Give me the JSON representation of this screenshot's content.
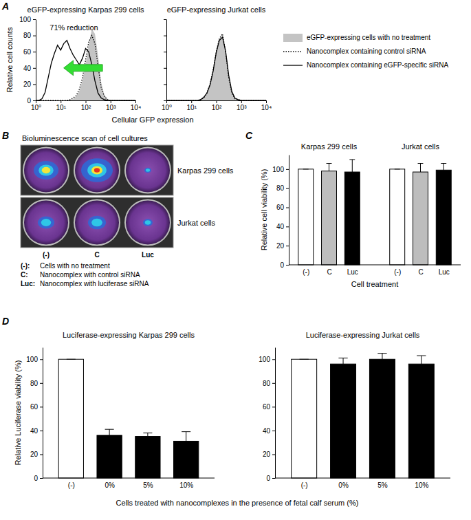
{
  "chart_data": [
    {
      "panel": "A",
      "type": "line",
      "title": "eGFP-expressing Karpas 299 cells",
      "xlabel": "Cellular GFP expression",
      "ylabel": "Relative cell counts",
      "log": "x",
      "xlim": [
        1,
        10000
      ],
      "xticks": [
        {
          "value": 1,
          "label": "10⁰"
        },
        {
          "value": 10,
          "label": "10¹"
        },
        {
          "value": 100,
          "label": "10²"
        },
        {
          "value": 1000,
          "label": "10³"
        },
        {
          "value": 10000,
          "label": "10⁴"
        }
      ],
      "ylim": [
        0,
        100
      ],
      "yticks": [
        0,
        20,
        40,
        60,
        80,
        100
      ],
      "annotations": [
        "71% reduction"
      ],
      "legend": "right",
      "x": [
        1,
        1.33,
        1.78,
        2.37,
        3.16,
        4.22,
        5.62,
        7.5,
        10,
        13.3,
        17.8,
        23.7,
        31.6,
        42.2,
        56.2,
        75,
        100,
        133,
        178,
        237,
        316,
        422,
        562,
        750,
        1000,
        1334,
        1778,
        2371,
        3162,
        4217,
        5623,
        7499,
        10000
      ],
      "series": [
        {
          "name": "eGFP-expressing cells with no treatment",
          "type": "area",
          "color": "#c4c4c4",
          "line_style": "solid",
          "values": [
            0,
            0,
            0,
            0,
            0,
            0,
            0,
            0,
            0,
            0,
            0,
            1,
            2,
            5,
            12,
            25,
            45,
            68,
            88,
            82,
            55,
            22,
            7,
            2,
            0,
            0,
            0,
            0,
            0,
            0,
            0,
            0,
            0
          ]
        },
        {
          "name": "Nanocomplex containing control siRNA",
          "type": "line",
          "color": "#000000",
          "line_style": "dotted",
          "values": [
            0,
            0,
            0,
            0,
            0,
            0,
            0,
            0,
            0,
            0,
            0,
            1,
            3,
            6,
            14,
            28,
            50,
            72,
            80,
            70,
            42,
            16,
            5,
            1,
            0,
            0,
            0,
            0,
            0,
            0,
            0,
            0,
            0
          ]
        },
        {
          "name": "Nanocomplex containing eGFP-specific siRNA",
          "type": "line",
          "color": "#000000",
          "line_style": "solid",
          "values": [
            0,
            0,
            2,
            10,
            28,
            46,
            58,
            68,
            62,
            70,
            74,
            64,
            56,
            50,
            44,
            52,
            64,
            60,
            44,
            24,
            9,
            3,
            1,
            0,
            0,
            0,
            0,
            0,
            0,
            0,
            0,
            0,
            0
          ]
        }
      ]
    },
    {
      "type": "line",
      "title": "eGFP-expressing Jurkat cells",
      "log": "x",
      "xlim": [
        1,
        10000
      ],
      "tick_labels": "x",
      "xticks": [
        {
          "value": 1,
          "label": "10⁰"
        },
        {
          "value": 10,
          "label": "10¹"
        },
        {
          "value": 100,
          "label": "10²"
        },
        {
          "value": 1000,
          "label": "10³"
        },
        {
          "value": 10000,
          "label": "10⁴"
        }
      ],
      "ylim": [
        0,
        100
      ],
      "yticks": [
        0,
        20,
        40,
        60,
        80,
        100
      ],
      "x": [
        1,
        1.33,
        1.78,
        2.37,
        3.16,
        4.22,
        5.62,
        7.5,
        10,
        13.3,
        17.8,
        23.7,
        31.6,
        42.2,
        56.2,
        75,
        100,
        133,
        178,
        237,
        316,
        422,
        562,
        750,
        1000,
        1334,
        1778,
        2371,
        3162,
        4217,
        5623,
        7499,
        10000
      ],
      "series": [
        {
          "type": "area",
          "color": "#c4c4c4",
          "line_style": "solid",
          "values": [
            0,
            0,
            0,
            0,
            0,
            0,
            0,
            0,
            0,
            0,
            0,
            1,
            3,
            8,
            18,
            35,
            58,
            75,
            80,
            62,
            30,
            10,
            3,
            1,
            0,
            0,
            0,
            0,
            0,
            0,
            0,
            0,
            0
          ]
        },
        {
          "type": "line",
          "color": "#000000",
          "line_style": "dotted",
          "values": [
            0,
            0,
            0,
            0,
            0,
            0,
            0,
            0,
            0,
            0,
            0,
            1,
            3,
            9,
            20,
            38,
            60,
            76,
            82,
            60,
            28,
            9,
            2,
            1,
            0,
            0,
            0,
            0,
            0,
            0,
            0,
            0,
            0
          ]
        },
        {
          "type": "line",
          "color": "#000000",
          "line_style": "solid",
          "values": [
            0,
            0,
            0,
            0,
            0,
            0,
            0,
            0,
            0,
            0,
            0,
            1,
            4,
            9,
            19,
            36,
            59,
            74,
            78,
            61,
            31,
            11,
            3,
            1,
            0,
            0,
            0,
            0,
            0,
            0,
            0,
            0,
            0
          ]
        }
      ]
    },
    {
      "panel": "C",
      "type": "bar",
      "ylabel": "Relative cell viability (%)",
      "xlabel": "Cell treatment",
      "groups": [
        "Karpas 299 cells",
        "Jurkat cells"
      ],
      "categories": [
        "(-)",
        "C",
        "Luc",
        "(-)",
        "C",
        "Luc"
      ],
      "values": [
        100,
        98,
        97,
        100,
        97,
        99
      ],
      "errors": [
        0,
        8,
        13,
        0,
        9,
        7
      ],
      "colors": [
        "#ffffff",
        "#bdbdbd",
        "#000000",
        "#ffffff",
        "#bdbdbd",
        "#000000"
      ],
      "ylim": [
        0,
        115
      ],
      "yticks": [
        0,
        20,
        40,
        60,
        80,
        100
      ]
    },
    {
      "panel": "D",
      "type": "bar",
      "title": "Luciferase-expressing Karpas 299 cells",
      "ylabel": "Relative Luciferase viability (%)",
      "xlabel": "Cells treated with nanocomplexes in the presence of fetal calf serum (%)",
      "categories": [
        "(-)",
        "0%",
        "5%",
        "10%"
      ],
      "values": [
        100,
        36,
        35,
        31
      ],
      "errors": [
        0,
        5,
        3,
        8
      ],
      "colors": [
        "#ffffff",
        "#000000",
        "#000000",
        "#000000"
      ],
      "ylim": [
        0,
        110
      ],
      "yticks": [
        0,
        20,
        40,
        60,
        80,
        100
      ]
    },
    {
      "type": "bar",
      "title": "Luciferase-expressing Jurkat cells",
      "categories": [
        "(-)",
        "0%",
        "5%",
        "10%"
      ],
      "values": [
        100,
        96,
        100,
        96
      ],
      "errors": [
        0,
        5,
        5,
        7
      ],
      "colors": [
        "#ffffff",
        "#000000",
        "#000000",
        "#000000"
      ],
      "ylim": [
        0,
        110
      ],
      "yticks": [
        0,
        20,
        40,
        60,
        80,
        100
      ]
    }
  ],
  "bioluminescence": {
    "panel": "B",
    "title": "Bioluminescence scan of cell cultures",
    "columns": [
      "(-)",
      "C",
      "Luc"
    ],
    "rows": [
      {
        "label": "Karpas 299 cells",
        "signal": [
          0.7,
          0.95,
          0.05
        ]
      },
      {
        "label": "Jurkat cells",
        "signal": [
          0.4,
          0.45,
          0.15
        ]
      }
    ],
    "key": [
      {
        "code": "(-):",
        "text": "Cells with no treatment"
      },
      {
        "code": "C:",
        "text": "Nanocomplex with control siRNA"
      },
      {
        "code": "Luc:",
        "text": "Nanocomplex with luciferase siRNA"
      }
    ]
  }
}
